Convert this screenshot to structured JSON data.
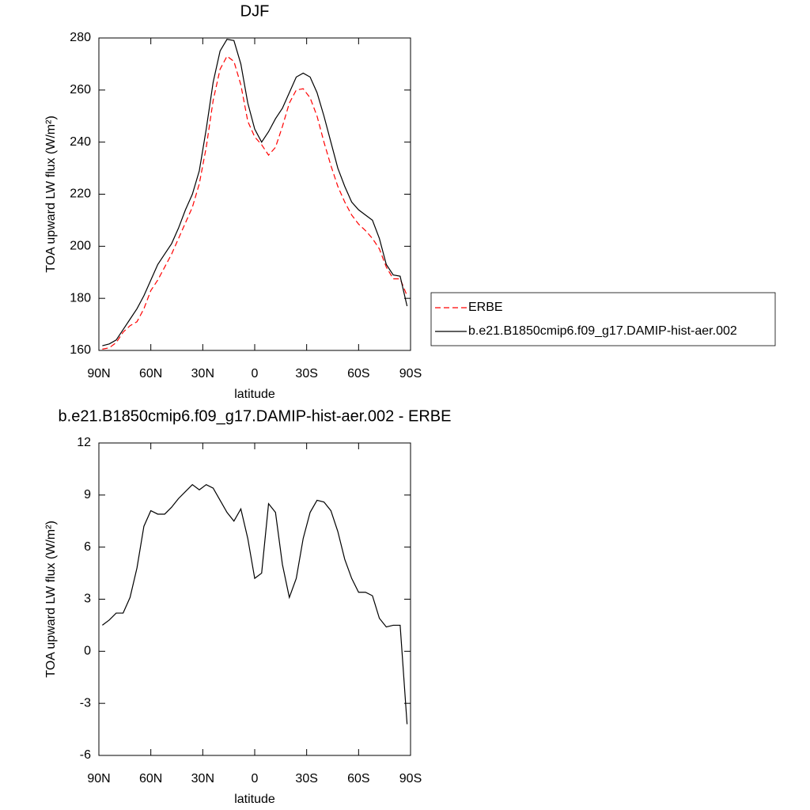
{
  "chart_data": [
    {
      "type": "line",
      "title": "DJF",
      "xlabel": "latitude",
      "ylabel": "TOA upward LW flux (W/m²)",
      "x": [
        88,
        84,
        80,
        76,
        72,
        68,
        64,
        60,
        56,
        52,
        48,
        44,
        40,
        36,
        32,
        28,
        24,
        20,
        16,
        12,
        8,
        4,
        0,
        -4,
        -8,
        -12,
        -16,
        -20,
        -24,
        -28,
        -32,
        -36,
        -40,
        -44,
        -48,
        -52,
        -56,
        -60,
        -64,
        -68,
        -72,
        -76,
        -80,
        -84,
        -88
      ],
      "series": [
        {
          "name": "ERBE",
          "color": "#ff0000",
          "line_style": "dashed",
          "values": [
            160.5,
            161,
            163,
            167,
            169.5,
            171,
            176,
            183,
            187,
            192,
            197,
            203,
            209,
            215,
            224,
            238,
            256,
            268,
            273,
            271,
            262,
            248,
            242,
            239,
            235,
            238,
            246,
            255,
            260,
            260.5,
            257,
            250,
            240,
            231,
            223,
            217,
            212,
            208.5,
            206,
            203,
            199,
            192,
            187.5,
            187.5,
            181
          ]
        },
        {
          "name": "b.e21.B1850cmip6.f09_g17.DAMIP-hist-aer.002",
          "color": "#000000",
          "line_style": "solid",
          "values": [
            161.8,
            162.5,
            164,
            168,
            172,
            176,
            181,
            187,
            193,
            197,
            201,
            207,
            214,
            220,
            229,
            245,
            263,
            275,
            279.5,
            279,
            270,
            255,
            245,
            240,
            244,
            249,
            253,
            259,
            265,
            266.5,
            265,
            259,
            250,
            240,
            230,
            223,
            217,
            214,
            212,
            210,
            203,
            193,
            189,
            188.5,
            177
          ]
        }
      ],
      "xlim": [
        90,
        -90
      ],
      "xticks": [
        {
          "value": 90,
          "label": "90N"
        },
        {
          "value": 60,
          "label": "60N"
        },
        {
          "value": 30,
          "label": "30N"
        },
        0,
        {
          "value": -30,
          "label": "30S"
        },
        {
          "value": -60,
          "label": "60S"
        },
        {
          "value": -90,
          "label": "90S"
        }
      ],
      "ylim": [
        160,
        280
      ],
      "yticks": [
        160,
        180,
        200,
        220,
        240,
        260,
        280
      ],
      "legend": "right"
    },
    {
      "type": "line",
      "title": "b.e21.B1850cmip6.f09_g17.DAMIP-hist-aer.002 - ERBE",
      "xlabel": "latitude",
      "ylabel": "TOA upward LW flux (W/m²)",
      "x": [
        88,
        84,
        80,
        76,
        72,
        68,
        64,
        60,
        56,
        52,
        48,
        44,
        40,
        36,
        32,
        28,
        24,
        20,
        16,
        12,
        8,
        4,
        0,
        -4,
        -8,
        -12,
        -16,
        -20,
        -24,
        -28,
        -32,
        -36,
        -40,
        -44,
        -48,
        -52,
        -56,
        -60,
        -64,
        -68,
        -72,
        -76,
        -80,
        -84,
        -88
      ],
      "series": [
        {
          "color": "#000000",
          "line_style": "solid",
          "values": [
            1.5,
            1.8,
            2.2,
            2.2,
            3.1,
            4.8,
            7.2,
            8.1,
            7.9,
            7.9,
            8.3,
            8.8,
            9.2,
            9.6,
            9.3,
            9.6,
            9.4,
            8.7,
            8.0,
            7.5,
            8.2,
            6.5,
            4.2,
            4.5,
            8.5,
            8.0,
            5.0,
            3.1,
            4.2,
            6.5,
            8.0,
            8.7,
            8.6,
            8.1,
            6.9,
            5.3,
            4.2,
            3.4,
            3.4,
            3.2,
            1.9,
            1.4,
            1.5,
            1.5,
            -4.2
          ]
        }
      ],
      "xlim": [
        90,
        -90
      ],
      "xticks": [
        {
          "value": 90,
          "label": "90N"
        },
        {
          "value": 60,
          "label": "60N"
        },
        {
          "value": 30,
          "label": "30N"
        },
        0,
        {
          "value": -30,
          "label": "30S"
        },
        {
          "value": -60,
          "label": "60S"
        },
        {
          "value": -90,
          "label": "90S"
        }
      ],
      "ylim": [
        -6,
        12
      ],
      "yticks": [
        -6,
        -3,
        0,
        3,
        6,
        9,
        12
      ]
    }
  ]
}
